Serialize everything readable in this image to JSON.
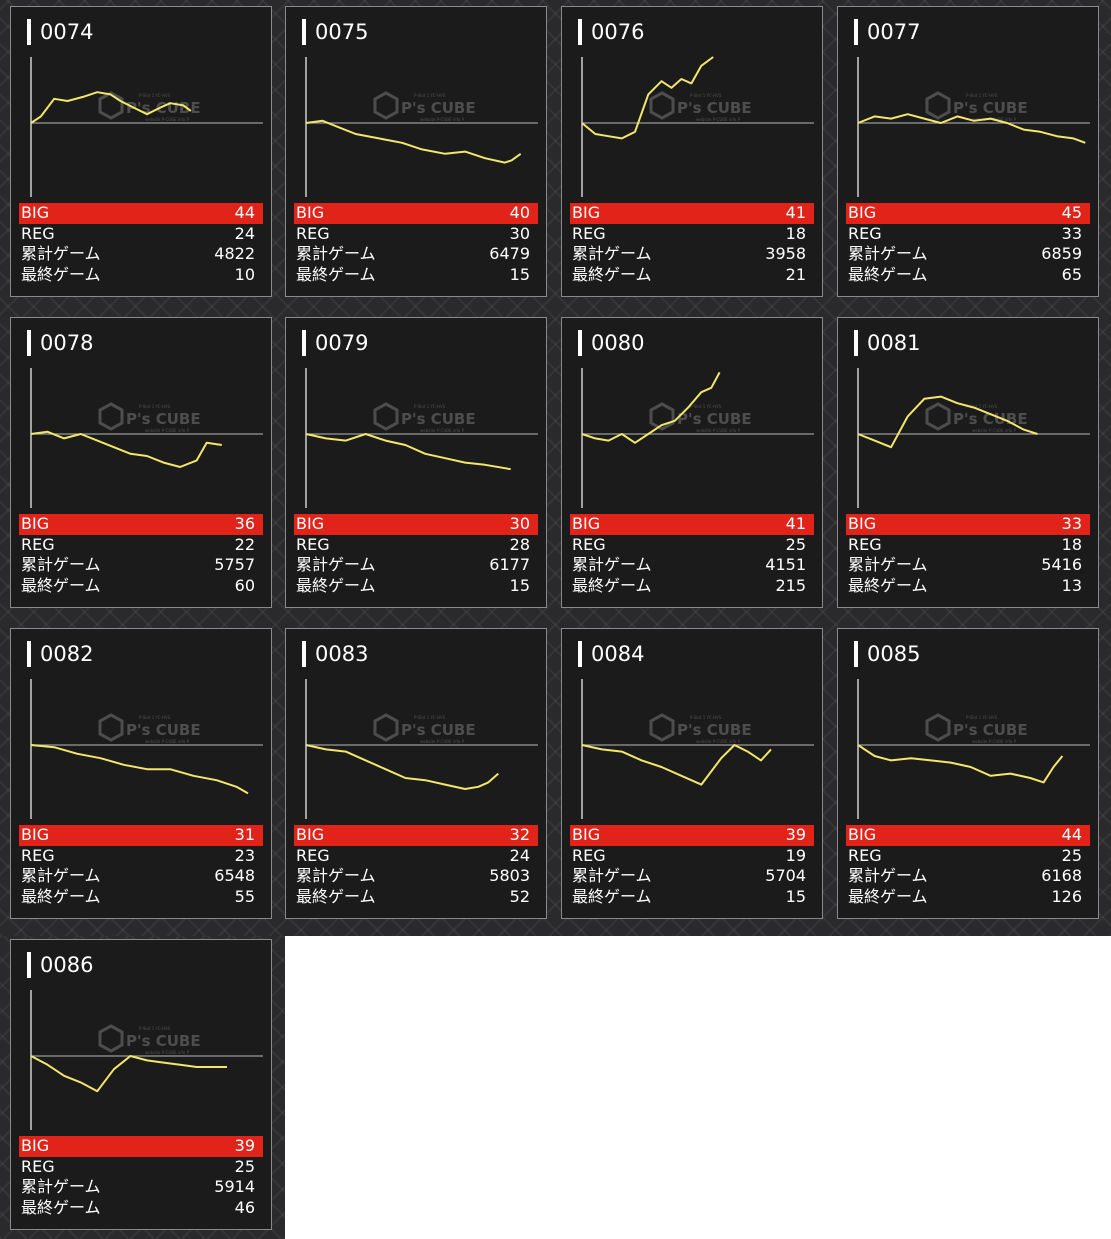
{
  "labels": {
    "big": "BIG",
    "reg": "REG",
    "total_games": "累計ゲーム",
    "last_game": "最終ゲーム"
  },
  "watermark": {
    "brand": "P's CUBE",
    "caption": "P-Slot 1 YC-HVS",
    "sub": "website P-CUBE info P"
  },
  "colors": {
    "background": "#2a2a2c",
    "card": "#1b1b1c",
    "big_bar": "#e2231a",
    "line": "#f3e66a",
    "baseline": "#9a9a9a"
  },
  "machines": [
    {
      "number": "0074",
      "big": "44",
      "reg": "24",
      "total_games": "4822",
      "last_game": "10"
    },
    {
      "number": "0075",
      "big": "40",
      "reg": "30",
      "total_games": "6479",
      "last_game": "15"
    },
    {
      "number": "0076",
      "big": "41",
      "reg": "18",
      "total_games": "3958",
      "last_game": "21"
    },
    {
      "number": "0077",
      "big": "45",
      "reg": "33",
      "total_games": "6859",
      "last_game": "65"
    },
    {
      "number": "0078",
      "big": "36",
      "reg": "22",
      "total_games": "5757",
      "last_game": "60"
    },
    {
      "number": "0079",
      "big": "30",
      "reg": "28",
      "total_games": "6177",
      "last_game": "15"
    },
    {
      "number": "0080",
      "big": "41",
      "reg": "25",
      "total_games": "4151",
      "last_game": "215"
    },
    {
      "number": "0081",
      "big": "33",
      "reg": "18",
      "total_games": "5416",
      "last_game": "13"
    },
    {
      "number": "0082",
      "big": "31",
      "reg": "23",
      "total_games": "6548",
      "last_game": "55"
    },
    {
      "number": "0083",
      "big": "32",
      "reg": "24",
      "total_games": "5803",
      "last_game": "52"
    },
    {
      "number": "0084",
      "big": "39",
      "reg": "19",
      "total_games": "5704",
      "last_game": "15"
    },
    {
      "number": "0085",
      "big": "44",
      "reg": "25",
      "total_games": "6168",
      "last_game": "126"
    },
    {
      "number": "0086",
      "big": "39",
      "reg": "25",
      "total_games": "5914",
      "last_game": "46"
    }
  ],
  "chart_data": {
    "type": "line",
    "x_extent": [
      0,
      7000
    ],
    "y_extent": [
      -3000,
      3000
    ],
    "baseline": 0,
    "series": [
      {
        "machine": "0074",
        "x": [
          0,
          300,
          700,
          1100,
          1600,
          2000,
          2400,
          2700,
          3100,
          3500,
          3900,
          4200,
          4600,
          4822
        ],
        "y": [
          0,
          300,
          1100,
          1000,
          1200,
          1400,
          1300,
          1000,
          700,
          400,
          700,
          900,
          800,
          550
        ]
      },
      {
        "machine": "0075",
        "x": [
          0,
          500,
          1000,
          1500,
          2200,
          2900,
          3500,
          4200,
          4800,
          5400,
          6000,
          6200,
          6479
        ],
        "y": [
          0,
          100,
          -200,
          -500,
          -700,
          -900,
          -1200,
          -1400,
          -1300,
          -1600,
          -1800,
          -1700,
          -1400
        ]
      },
      {
        "machine": "0076",
        "x": [
          0,
          400,
          800,
          1200,
          1600,
          2000,
          2400,
          2700,
          3000,
          3300,
          3600,
          3958
        ],
        "y": [
          0,
          -500,
          -600,
          -700,
          -400,
          1300,
          1900,
          1600,
          2000,
          1800,
          2600,
          3000
        ]
      },
      {
        "machine": "0077",
        "x": [
          0,
          500,
          1000,
          1500,
          2000,
          2500,
          3000,
          3500,
          4000,
          4500,
          5000,
          5500,
          6000,
          6500,
          6859
        ],
        "y": [
          0,
          300,
          200,
          400,
          200,
          0,
          300,
          100,
          200,
          0,
          -300,
          -400,
          -600,
          -700,
          -900
        ]
      },
      {
        "machine": "0078",
        "x": [
          0,
          500,
          1000,
          1500,
          2000,
          2500,
          3000,
          3500,
          4000,
          4500,
          5000,
          5300,
          5757
        ],
        "y": [
          0,
          100,
          -200,
          0,
          -300,
          -600,
          -900,
          -1000,
          -1300,
          -1500,
          -1200,
          -400,
          -500
        ]
      },
      {
        "machine": "0079",
        "x": [
          0,
          600,
          1200,
          1800,
          2400,
          3000,
          3600,
          4200,
          4800,
          5400,
          6177
        ],
        "y": [
          0,
          -200,
          -300,
          0,
          -300,
          -500,
          -900,
          -1100,
          -1300,
          -1400,
          -1600
        ]
      },
      {
        "machine": "0080",
        "x": [
          0,
          400,
          800,
          1200,
          1600,
          2000,
          2400,
          2800,
          3200,
          3600,
          3900,
          4151
        ],
        "y": [
          0,
          -200,
          -300,
          0,
          -400,
          0,
          400,
          600,
          1200,
          1900,
          2100,
          2800
        ]
      },
      {
        "machine": "0081",
        "x": [
          0,
          500,
          1000,
          1500,
          2000,
          2500,
          3000,
          3500,
          4000,
          4500,
          5000,
          5416
        ],
        "y": [
          0,
          -300,
          -600,
          800,
          1600,
          1700,
          1400,
          1200,
          900,
          600,
          200,
          0
        ]
      },
      {
        "machine": "0082",
        "x": [
          0,
          700,
          1400,
          2100,
          2800,
          3500,
          4200,
          4900,
          5600,
          6200,
          6548
        ],
        "y": [
          0,
          -100,
          -400,
          -600,
          -900,
          -1100,
          -1100,
          -1400,
          -1600,
          -1900,
          -2200
        ]
      },
      {
        "machine": "0083",
        "x": [
          0,
          600,
          1200,
          1800,
          2400,
          3000,
          3600,
          4200,
          4800,
          5200,
          5500,
          5803
        ],
        "y": [
          0,
          -200,
          -300,
          -700,
          -1100,
          -1500,
          -1600,
          -1800,
          -2000,
          -1900,
          -1700,
          -1300
        ]
      },
      {
        "machine": "0084",
        "x": [
          0,
          600,
          1200,
          1800,
          2400,
          3000,
          3600,
          4200,
          4600,
          5000,
          5400,
          5704
        ],
        "y": [
          0,
          -200,
          -300,
          -700,
          -1000,
          -1400,
          -1800,
          -600,
          0,
          -300,
          -700,
          -200
        ]
      },
      {
        "machine": "0085",
        "x": [
          0,
          500,
          1000,
          1600,
          2200,
          2800,
          3400,
          4000,
          4600,
          5200,
          5600,
          5900,
          6168
        ],
        "y": [
          0,
          -500,
          -700,
          -600,
          -700,
          -800,
          -1000,
          -1400,
          -1300,
          -1500,
          -1700,
          -1000,
          -500
        ]
      },
      {
        "machine": "0086",
        "x": [
          0,
          500,
          1000,
          1500,
          2000,
          2500,
          3000,
          3500,
          4000,
          4500,
          5000,
          5500,
          5914
        ],
        "y": [
          0,
          -400,
          -900,
          -1200,
          -1600,
          -600,
          0,
          -200,
          -300,
          -400,
          -500,
          -500,
          -500
        ]
      }
    ]
  }
}
